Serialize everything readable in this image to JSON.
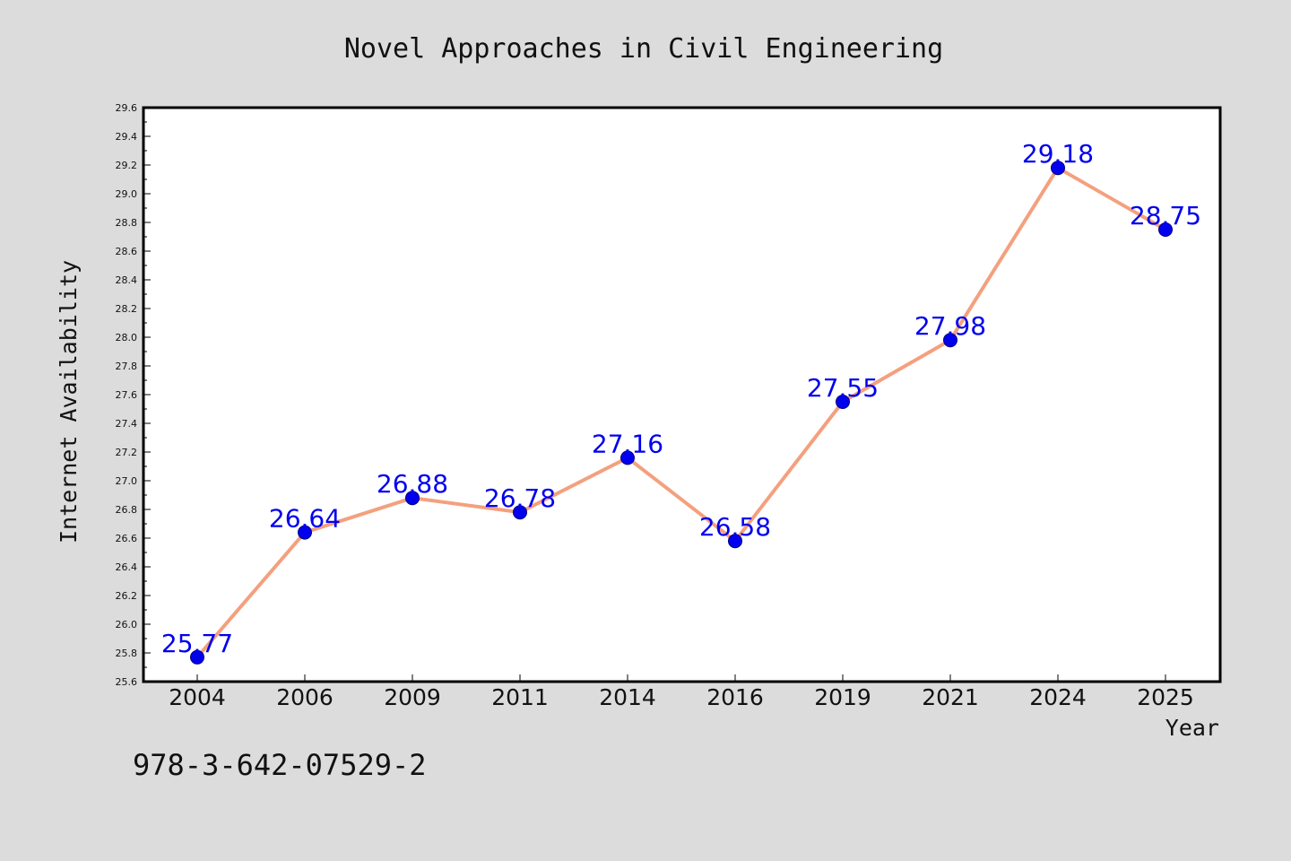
{
  "colors": {
    "background": "#dcdcdc",
    "plot_background": "#ffffff",
    "line": "#f4a07e",
    "marker_fill": "#0000ee",
    "marker_stroke": "#000080",
    "data_label": "#0000ee",
    "axis": "#000000"
  },
  "footer": {
    "isbn": "978-3-642-07529-2"
  },
  "chart_data": {
    "type": "line",
    "title": "Novel Approaches in Civil Engineering",
    "xlabel": "Year",
    "ylabel": "Internet Availability",
    "categories": [
      "2004",
      "2006",
      "2009",
      "2011",
      "2014",
      "2016",
      "2019",
      "2021",
      "2024",
      "2025"
    ],
    "series": [
      {
        "values": [
          25.77,
          26.64,
          26.88,
          26.78,
          27.16,
          26.58,
          27.55,
          27.98,
          29.18,
          28.75
        ]
      }
    ],
    "data_labels": [
      "25.77",
      "26.64",
      "26.88",
      "26.78",
      "27.16",
      "26.58",
      "27.55",
      "27.98",
      "29.18",
      "28.75"
    ],
    "ylim": [
      25.6,
      29.6
    ],
    "yticks": [
      "25.6",
      "25.8",
      "26.0",
      "26.2",
      "26.4",
      "26.6",
      "26.8",
      "27.0",
      "27.2",
      "27.4",
      "27.6",
      "27.8",
      "28.0",
      "28.2",
      "28.4",
      "28.6",
      "28.8",
      "29.0",
      "29.2",
      "29.4",
      "29.6"
    ],
    "grid": false,
    "legend": "none"
  }
}
